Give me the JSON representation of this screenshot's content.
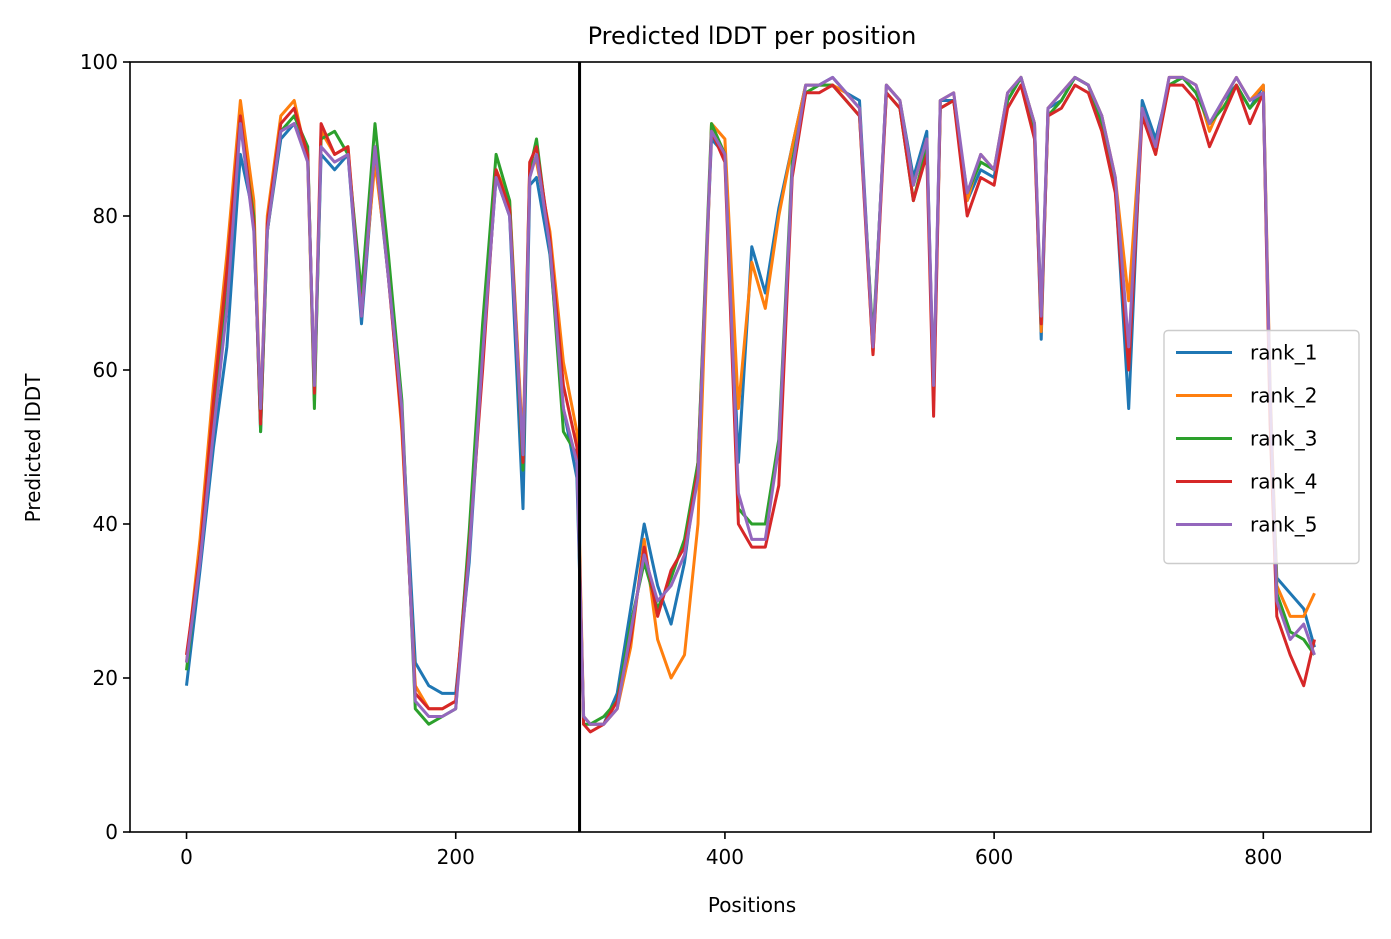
{
  "chart_data": {
    "type": "line",
    "title": "Predicted lDDT per position",
    "xlabel": "Positions",
    "ylabel": "Predicted lDDT",
    "xlim": [
      -42,
      880
    ],
    "ylim": [
      0,
      100
    ],
    "xticks": [
      0,
      200,
      400,
      600,
      800
    ],
    "yticks": [
      0,
      20,
      40,
      60,
      80,
      100
    ],
    "grid": false,
    "legend_position": "center-right",
    "vline_x": 292,
    "vline_color": "#000000",
    "series": [
      {
        "name": "rank_1",
        "color": "#1f77b4",
        "x": [
          0,
          10,
          20,
          30,
          40,
          50,
          55,
          60,
          70,
          80,
          90,
          95,
          100,
          110,
          120,
          130,
          140,
          150,
          160,
          170,
          180,
          190,
          200,
          210,
          220,
          230,
          240,
          250,
          255,
          260,
          270,
          280,
          290,
          295,
          300,
          310,
          320,
          330,
          340,
          350,
          360,
          370,
          380,
          390,
          400,
          410,
          420,
          430,
          440,
          450,
          460,
          470,
          480,
          490,
          500,
          510,
          520,
          530,
          540,
          550,
          555,
          560,
          570,
          580,
          590,
          600,
          610,
          620,
          630,
          635,
          640,
          650,
          660,
          670,
          680,
          690,
          700,
          710,
          720,
          730,
          740,
          750,
          760,
          770,
          780,
          790,
          800,
          805,
          810,
          820,
          830,
          838
        ],
        "y": [
          19,
          34,
          50,
          63,
          88,
          80,
          52,
          78,
          90,
          92,
          88,
          57,
          88,
          86,
          88,
          66,
          88,
          72,
          54,
          22,
          19,
          18,
          18,
          35,
          62,
          85,
          80,
          42,
          84,
          85,
          75,
          55,
          46,
          15,
          14,
          14,
          18,
          29,
          40,
          32,
          27,
          35,
          48,
          90,
          88,
          48,
          76,
          70,
          81,
          89,
          97,
          97,
          98,
          96,
          95,
          63,
          97,
          95,
          85,
          91,
          56,
          95,
          95,
          82,
          86,
          85,
          95,
          98,
          92,
          64,
          94,
          95,
          98,
          97,
          93,
          84,
          55,
          95,
          90,
          97,
          98,
          96,
          92,
          95,
          97,
          94,
          97,
          55,
          33,
          31,
          29,
          24
        ]
      },
      {
        "name": "rank_2",
        "color": "#ff7f0e",
        "x": [
          0,
          10,
          20,
          30,
          40,
          50,
          55,
          60,
          70,
          80,
          90,
          95,
          100,
          110,
          120,
          130,
          140,
          150,
          160,
          170,
          180,
          190,
          200,
          210,
          220,
          230,
          240,
          250,
          255,
          260,
          270,
          280,
          290,
          295,
          300,
          310,
          320,
          330,
          340,
          350,
          360,
          370,
          380,
          390,
          400,
          410,
          420,
          430,
          440,
          450,
          460,
          470,
          480,
          490,
          500,
          510,
          520,
          530,
          540,
          550,
          555,
          560,
          570,
          580,
          590,
          600,
          610,
          620,
          630,
          635,
          640,
          650,
          660,
          670,
          680,
          690,
          700,
          710,
          720,
          730,
          740,
          750,
          760,
          770,
          780,
          790,
          800,
          805,
          810,
          820,
          830,
          838
        ],
        "y": [
          22,
          38,
          58,
          75,
          95,
          82,
          54,
          80,
          93,
          95,
          87,
          56,
          91,
          88,
          89,
          68,
          87,
          73,
          52,
          19,
          16,
          16,
          17,
          38,
          63,
          86,
          82,
          50,
          87,
          87,
          78,
          61,
          52,
          15,
          14,
          14,
          16,
          24,
          38,
          25,
          20,
          23,
          40,
          92,
          90,
          55,
          74,
          68,
          80,
          89,
          97,
          97,
          97,
          96,
          94,
          62,
          97,
          95,
          84,
          90,
          56,
          95,
          96,
          82,
          88,
          86,
          96,
          98,
          92,
          65,
          94,
          96,
          98,
          97,
          93,
          85,
          69,
          94,
          88,
          98,
          98,
          97,
          91,
          95,
          98,
          95,
          97,
          58,
          32,
          28,
          28,
          31
        ]
      },
      {
        "name": "rank_3",
        "color": "#2ca02c",
        "x": [
          0,
          10,
          20,
          30,
          40,
          50,
          55,
          60,
          70,
          80,
          90,
          95,
          100,
          110,
          120,
          130,
          140,
          150,
          160,
          170,
          180,
          190,
          200,
          210,
          220,
          230,
          240,
          250,
          255,
          260,
          270,
          280,
          290,
          295,
          300,
          310,
          320,
          330,
          340,
          350,
          360,
          370,
          380,
          390,
          400,
          410,
          420,
          430,
          440,
          450,
          460,
          470,
          480,
          490,
          500,
          510,
          520,
          530,
          540,
          550,
          555,
          560,
          570,
          580,
          590,
          600,
          610,
          620,
          630,
          635,
          640,
          650,
          660,
          670,
          680,
          690,
          700,
          710,
          720,
          730,
          740,
          750,
          760,
          770,
          780,
          790,
          800,
          805,
          810,
          820,
          830,
          838
        ],
        "y": [
          21,
          36,
          54,
          70,
          92,
          80,
          52,
          78,
          91,
          93,
          89,
          55,
          90,
          91,
          88,
          70,
          92,
          75,
          56,
          16,
          14,
          15,
          16,
          39,
          66,
          88,
          82,
          47,
          86,
          90,
          76,
          52,
          49,
          14,
          14,
          15,
          17,
          27,
          35,
          29,
          33,
          38,
          48,
          92,
          88,
          42,
          40,
          40,
          51,
          87,
          96,
          97,
          97,
          95,
          93,
          64,
          96,
          94,
          82,
          89,
          57,
          94,
          95,
          83,
          87,
          86,
          95,
          98,
          91,
          67,
          93,
          95,
          98,
          97,
          92,
          84,
          62,
          94,
          89,
          97,
          98,
          96,
          92,
          94,
          97,
          94,
          96,
          56,
          31,
          26,
          25,
          23
        ]
      },
      {
        "name": "rank_4",
        "color": "#d62728",
        "x": [
          0,
          10,
          20,
          30,
          40,
          50,
          55,
          60,
          70,
          80,
          90,
          95,
          100,
          110,
          120,
          130,
          140,
          150,
          160,
          170,
          180,
          190,
          200,
          210,
          220,
          230,
          240,
          250,
          255,
          260,
          270,
          280,
          290,
          295,
          300,
          310,
          320,
          330,
          340,
          350,
          360,
          370,
          380,
          390,
          400,
          410,
          420,
          430,
          440,
          450,
          460,
          470,
          480,
          490,
          500,
          510,
          520,
          530,
          540,
          550,
          555,
          560,
          570,
          580,
          590,
          600,
          610,
          620,
          630,
          635,
          640,
          650,
          660,
          670,
          680,
          690,
          700,
          710,
          720,
          730,
          740,
          750,
          760,
          770,
          780,
          790,
          800,
          805,
          810,
          820,
          830,
          838
        ],
        "y": [
          23,
          36,
          56,
          73,
          93,
          79,
          53,
          79,
          92,
          94,
          88,
          57,
          92,
          88,
          89,
          67,
          89,
          72,
          53,
          18,
          16,
          16,
          17,
          37,
          60,
          86,
          81,
          48,
          87,
          89,
          77,
          58,
          50,
          14,
          13,
          14,
          17,
          25,
          37,
          28,
          34,
          37,
          47,
          91,
          87,
          40,
          37,
          37,
          45,
          85,
          96,
          96,
          97,
          95,
          93,
          62,
          96,
          94,
          82,
          88,
          54,
          94,
          95,
          80,
          85,
          84,
          94,
          97,
          90,
          66,
          93,
          94,
          97,
          96,
          91,
          83,
          60,
          93,
          88,
          97,
          97,
          95,
          89,
          93,
          97,
          92,
          96,
          53,
          28,
          23,
          19,
          25
        ]
      },
      {
        "name": "rank_5",
        "color": "#9467bd",
        "x": [
          0,
          10,
          20,
          30,
          40,
          50,
          55,
          60,
          70,
          80,
          90,
          95,
          100,
          110,
          120,
          130,
          140,
          150,
          160,
          170,
          180,
          190,
          200,
          210,
          220,
          230,
          240,
          250,
          255,
          260,
          270,
          280,
          290,
          295,
          300,
          310,
          320,
          330,
          340,
          350,
          360,
          370,
          380,
          390,
          400,
          410,
          420,
          430,
          440,
          450,
          460,
          470,
          480,
          490,
          500,
          510,
          520,
          530,
          540,
          550,
          555,
          560,
          570,
          580,
          590,
          600,
          610,
          620,
          630,
          635,
          640,
          650,
          660,
          670,
          680,
          690,
          700,
          710,
          720,
          730,
          740,
          750,
          760,
          770,
          780,
          790,
          800,
          805,
          810,
          820,
          830,
          838
        ],
        "y": [
          22,
          35,
          52,
          68,
          92,
          78,
          55,
          78,
          91,
          92,
          87,
          58,
          89,
          87,
          88,
          67,
          89,
          72,
          55,
          17,
          15,
          15,
          16,
          36,
          62,
          85,
          80,
          49,
          85,
          88,
          76,
          55,
          48,
          15,
          14,
          14,
          16,
          26,
          36,
          30,
          32,
          36,
          46,
          91,
          88,
          44,
          38,
          38,
          50,
          86,
          97,
          97,
          98,
          96,
          94,
          63,
          97,
          95,
          84,
          90,
          58,
          95,
          96,
          83,
          88,
          86,
          96,
          98,
          92,
          67,
          94,
          96,
          98,
          97,
          93,
          85,
          63,
          94,
          89,
          98,
          98,
          97,
          92,
          95,
          98,
          95,
          96,
          57,
          30,
          25,
          27,
          23
        ]
      }
    ]
  }
}
